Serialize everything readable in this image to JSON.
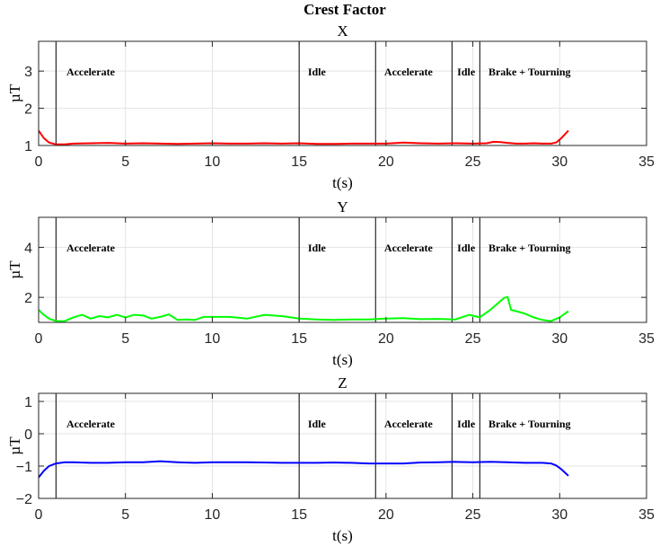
{
  "figure": {
    "title": "Crest Factor"
  },
  "chart_data": [
    {
      "type": "line",
      "title": "X",
      "xlabel": "t(s)",
      "ylabel": "µT",
      "xlim": [
        0,
        35
      ],
      "ylim": [
        1,
        3.8
      ],
      "xticks": [
        0,
        5,
        10,
        15,
        20,
        25,
        30,
        35
      ],
      "yticks": [
        1,
        2,
        3
      ],
      "grid": true,
      "color": "#ff0000",
      "vlines": [
        1,
        15,
        19.4,
        23.8,
        25.4
      ],
      "annotations": [
        {
          "text": "Accelerate",
          "x": 1.6
        },
        {
          "text": "Idle",
          "x": 15.5
        },
        {
          "text": "Accelerate",
          "x": 19.9
        },
        {
          "text": "Idle",
          "x": 24.1
        },
        {
          "text": "Brake + Tourning",
          "x": 25.9
        }
      ],
      "series": [
        {
          "x": [
            0,
            0.3,
            0.6,
            1.0,
            1.5,
            2,
            3,
            4,
            5,
            6,
            7,
            8,
            9,
            10,
            11,
            12,
            13,
            14,
            15,
            16,
            17,
            18,
            19,
            20,
            21,
            22,
            23,
            24,
            25,
            25.8,
            26.2,
            26.6,
            27,
            27.5,
            28,
            28.5,
            29,
            29.5,
            29.8,
            30.1,
            30.5
          ],
          "y": [
            1.4,
            1.2,
            1.08,
            1.03,
            1.03,
            1.05,
            1.06,
            1.07,
            1.05,
            1.06,
            1.05,
            1.04,
            1.05,
            1.06,
            1.05,
            1.05,
            1.06,
            1.05,
            1.06,
            1.04,
            1.04,
            1.05,
            1.05,
            1.05,
            1.08,
            1.06,
            1.05,
            1.06,
            1.05,
            1.06,
            1.1,
            1.09,
            1.07,
            1.05,
            1.05,
            1.06,
            1.05,
            1.05,
            1.08,
            1.2,
            1.4
          ]
        }
      ]
    },
    {
      "type": "line",
      "title": "Y",
      "xlabel": "t(s)",
      "ylabel": "µT",
      "xlim": [
        0,
        35
      ],
      "ylim": [
        1,
        5.2
      ],
      "xticks": [
        0,
        5,
        10,
        15,
        20,
        25,
        30,
        35
      ],
      "yticks": [
        2,
        4
      ],
      "grid": true,
      "color": "#00ff00",
      "vlines": [
        1,
        15,
        19.4,
        23.8,
        25.4
      ],
      "annotations": [
        {
          "text": "Accelerate",
          "x": 1.6
        },
        {
          "text": "Idle",
          "x": 15.5
        },
        {
          "text": "Accelerate",
          "x": 19.9
        },
        {
          "text": "Idle",
          "x": 24.1
        },
        {
          "text": "Brake + Tourning",
          "x": 25.9
        }
      ],
      "series": [
        {
          "x": [
            0,
            0.3,
            0.6,
            1.0,
            1.5,
            2,
            2.5,
            3,
            3.5,
            4,
            4.5,
            5,
            5.5,
            6,
            6.5,
            7,
            7.5,
            8,
            8.5,
            9,
            9.5,
            10,
            11,
            12,
            13,
            14,
            15,
            16,
            17,
            18,
            19,
            20,
            21,
            22,
            23,
            24,
            24.8,
            25.4,
            26,
            26.5,
            26.8,
            27,
            27.2,
            27.5,
            28,
            28.5,
            29,
            29.5,
            30,
            30.5
          ],
          "y": [
            1.5,
            1.3,
            1.15,
            1.05,
            1.05,
            1.2,
            1.3,
            1.15,
            1.25,
            1.2,
            1.3,
            1.2,
            1.3,
            1.28,
            1.15,
            1.22,
            1.32,
            1.1,
            1.12,
            1.1,
            1.22,
            1.22,
            1.22,
            1.15,
            1.3,
            1.25,
            1.15,
            1.12,
            1.1,
            1.12,
            1.12,
            1.15,
            1.17,
            1.13,
            1.14,
            1.12,
            1.3,
            1.2,
            1.5,
            1.8,
            1.98,
            2.02,
            1.5,
            1.45,
            1.35,
            1.2,
            1.1,
            1.05,
            1.2,
            1.45
          ]
        }
      ]
    },
    {
      "type": "line",
      "title": "Z",
      "xlabel": "t(s)",
      "ylabel": "µT",
      "xlim": [
        0,
        35
      ],
      "ylim": [
        -2,
        1.25
      ],
      "xticks": [
        0,
        5,
        10,
        15,
        20,
        25,
        30,
        35
      ],
      "yticks": [
        -2,
        -1,
        0,
        1
      ],
      "grid": true,
      "color": "#0000ff",
      "vlines": [
        1,
        15,
        19.4,
        23.8,
        25.4
      ],
      "annotations": [
        {
          "text": "Accelerate",
          "x": 1.6
        },
        {
          "text": "Idle",
          "x": 15.5
        },
        {
          "text": "Accelerate",
          "x": 19.9
        },
        {
          "text": "Idle",
          "x": 24.1
        },
        {
          "text": "Brake + Tourning",
          "x": 25.9
        }
      ],
      "series": [
        {
          "x": [
            0,
            0.3,
            0.6,
            1.0,
            1.5,
            2,
            3,
            4,
            5,
            6,
            7,
            8,
            9,
            10,
            11,
            12,
            13,
            14,
            15,
            16,
            17,
            18,
            19,
            20,
            21,
            22,
            23,
            24,
            25,
            26,
            27,
            28,
            29,
            29.5,
            29.8,
            30.1,
            30.5
          ],
          "y": [
            -1.35,
            -1.15,
            -1.0,
            -0.92,
            -0.88,
            -0.88,
            -0.9,
            -0.9,
            -0.88,
            -0.88,
            -0.85,
            -0.88,
            -0.9,
            -0.88,
            -0.88,
            -0.88,
            -0.89,
            -0.9,
            -0.9,
            -0.9,
            -0.89,
            -0.9,
            -0.92,
            -0.92,
            -0.92,
            -0.89,
            -0.88,
            -0.87,
            -0.88,
            -0.87,
            -0.88,
            -0.9,
            -0.9,
            -0.92,
            -0.98,
            -1.1,
            -1.3
          ]
        }
      ]
    }
  ]
}
